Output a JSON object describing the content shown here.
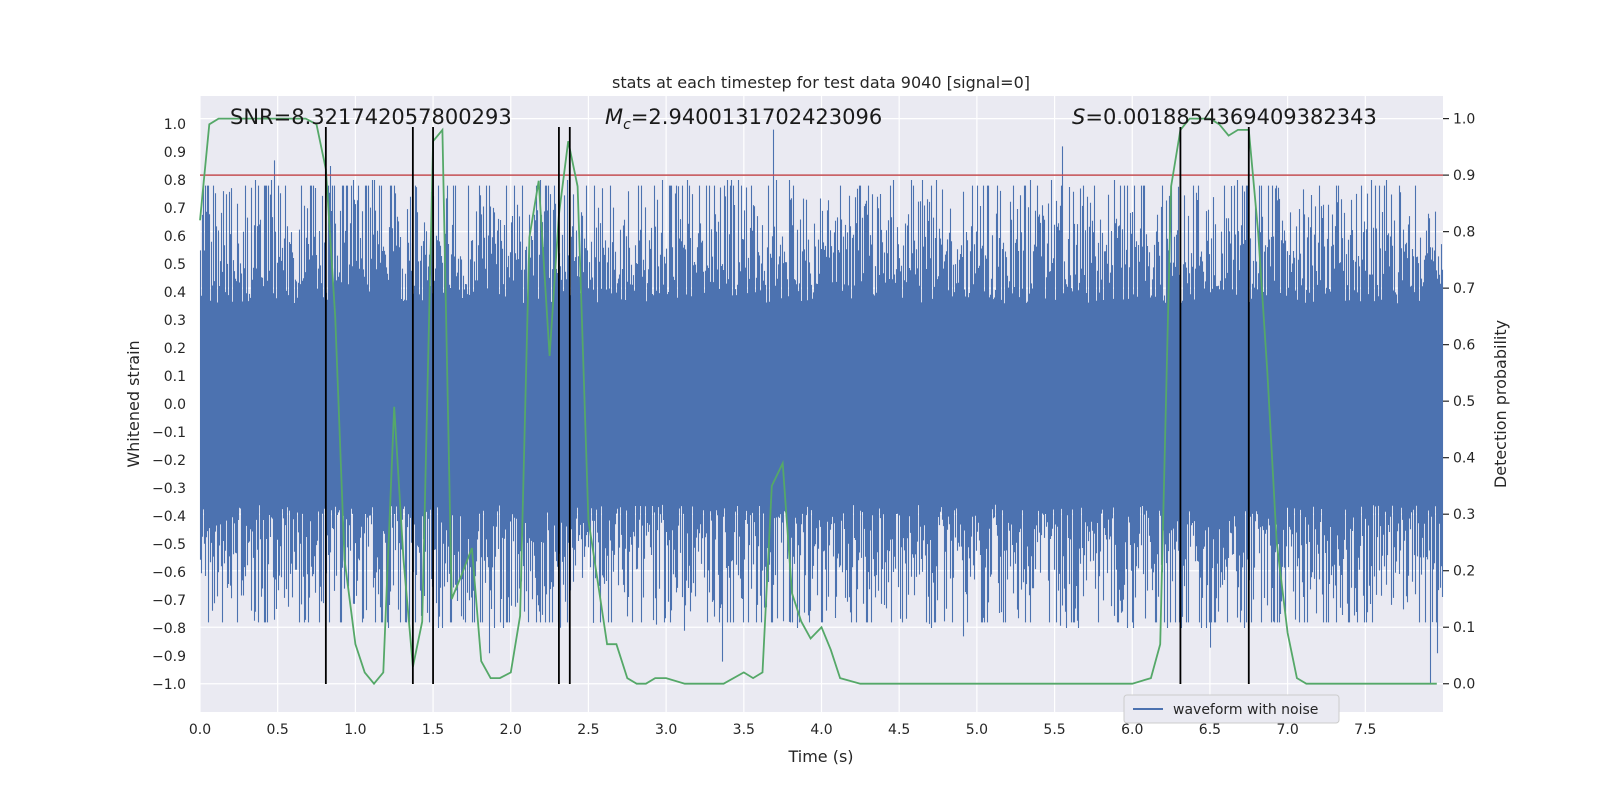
{
  "chart_data": {
    "type": "line",
    "title": "stats at each timestep for test data 9040 [signal=0]",
    "xlabel": "Time (s)",
    "ylabel": "Whitened strain",
    "y2label": "Detection probability",
    "xlim": [
      0,
      8
    ],
    "ylim": [
      -1.1,
      1.1
    ],
    "y2lim": [
      -0.05,
      1.04
    ],
    "xticks": [
      "0.0",
      "0.5",
      "1.0",
      "1.5",
      "2.0",
      "2.5",
      "3.0",
      "3.5",
      "4.0",
      "4.5",
      "5.0",
      "5.5",
      "6.0",
      "6.5",
      "7.0",
      "7.5"
    ],
    "yticks": [
      "1.0",
      "0.9",
      "0.8",
      "0.7",
      "0.6",
      "0.5",
      "0.4",
      "0.3",
      "0.2",
      "0.1",
      "0.0",
      "-0.1",
      "-0.2",
      "-0.3",
      "-0.4",
      "-0.5",
      "-0.6",
      "-0.7",
      "-0.8",
      "-0.9",
      "-1.0"
    ],
    "y2ticks": [
      "1.0",
      "0.9",
      "0.8",
      "0.7",
      "0.6",
      "0.5",
      "0.4",
      "0.3",
      "0.2",
      "0.1",
      "0.0"
    ],
    "annotations": {
      "snr": "SNR=8.321742057800293",
      "mc_symbol": "M",
      "mc_sub": "c",
      "mc_value": "=2.9400131702423096",
      "s_symbol": "S",
      "s_value": "=0.0018854369409382343"
    },
    "legend": [
      "waveform with noise"
    ],
    "threshold": 0.9,
    "detection_times": [
      0.81,
      1.37,
      1.5,
      2.31,
      2.38,
      6.31,
      6.75
    ],
    "waveform": {
      "name": "waveform with noise",
      "typical_amplitude": 0.45,
      "peaks": [
        [
          0.48,
          0.87
        ],
        [
          0.84,
          0.85
        ],
        [
          1.86,
          -0.89
        ],
        [
          3.12,
          -0.81
        ],
        [
          3.36,
          -0.92
        ],
        [
          3.69,
          0.98
        ],
        [
          4.91,
          -0.83
        ],
        [
          5.55,
          0.92
        ],
        [
          6.5,
          -0.87
        ],
        [
          7.92,
          -1.0
        ],
        [
          7.96,
          -0.89
        ]
      ]
    },
    "detection_probability": {
      "x": [
        0.0,
        0.06,
        0.12,
        0.18,
        0.25,
        0.31,
        0.37,
        0.43,
        0.5,
        0.56,
        0.62,
        0.68,
        0.75,
        0.81,
        0.87,
        0.93,
        1.0,
        1.06,
        1.12,
        1.18,
        1.25,
        1.31,
        1.37,
        1.43,
        1.5,
        1.56,
        1.62,
        1.68,
        1.75,
        1.81,
        1.87,
        1.93,
        2.0,
        2.06,
        2.12,
        2.18,
        2.25,
        2.31,
        2.37,
        2.43,
        2.5,
        2.56,
        2.62,
        2.68,
        2.75,
        2.81,
        2.87,
        2.93,
        3.0,
        3.12,
        3.25,
        3.37,
        3.5,
        3.56,
        3.62,
        3.68,
        3.75,
        3.81,
        3.87,
        3.93,
        4.0,
        4.06,
        4.12,
        4.25,
        4.5,
        5.0,
        5.5,
        6.0,
        6.12,
        6.18,
        6.25,
        6.31,
        6.37,
        6.43,
        6.5,
        6.56,
        6.62,
        6.68,
        6.75,
        6.81,
        6.87,
        6.93,
        7.0,
        7.06,
        7.12,
        7.5,
        7.96
      ],
      "values": [
        0.82,
        0.99,
        1.0,
        1.0,
        1.0,
        1.0,
        1.0,
        1.0,
        1.0,
        1.0,
        1.0,
        1.0,
        0.99,
        0.91,
        0.65,
        0.22,
        0.07,
        0.02,
        0.0,
        0.02,
        0.49,
        0.22,
        0.03,
        0.11,
        0.96,
        0.98,
        0.15,
        0.19,
        0.24,
        0.04,
        0.01,
        0.01,
        0.02,
        0.12,
        0.79,
        0.89,
        0.58,
        0.83,
        0.96,
        0.88,
        0.29,
        0.18,
        0.07,
        0.07,
        0.01,
        0.0,
        0.0,
        0.01,
        0.01,
        0.0,
        0.0,
        0.0,
        0.02,
        0.01,
        0.02,
        0.35,
        0.39,
        0.16,
        0.11,
        0.08,
        0.1,
        0.06,
        0.01,
        0.0,
        0.0,
        0.0,
        0.0,
        0.0,
        0.01,
        0.07,
        0.88,
        0.98,
        1.0,
        1.0,
        1.0,
        0.99,
        0.97,
        0.98,
        0.98,
        0.8,
        0.55,
        0.25,
        0.09,
        0.01,
        0.0,
        0.0,
        0.0
      ]
    }
  }
}
